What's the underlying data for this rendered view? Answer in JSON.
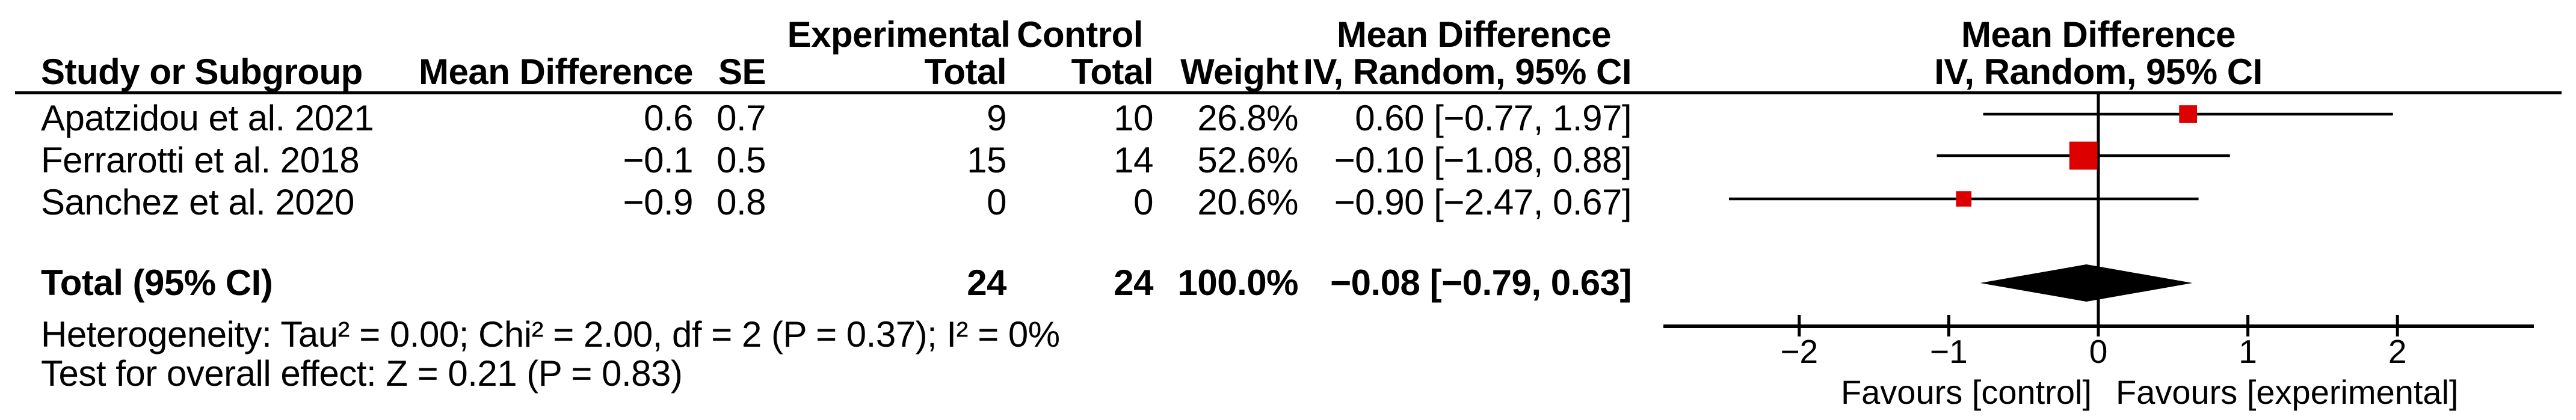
{
  "header": {
    "group_experimental": "Experimental",
    "group_control": "Control",
    "md_column_title": "Mean Difference",
    "plot_title": "Mean Difference",
    "study": "Study or Subgroup",
    "mean_difference": "Mean Difference",
    "se": "SE",
    "total_experimental": "Total",
    "total_control": "Total",
    "weight": "Weight",
    "iv_column": "IV, Random, 95% CI",
    "iv_plot": "IV, Random, 95% CI"
  },
  "rows": [
    {
      "name": "Apatzidou et al. 2021",
      "mean_difference": "0.6",
      "se": "0.7",
      "experimental_total": "9",
      "control_total": "10",
      "weight": "26.8%",
      "ci_text": "0.60 [−0.77, 1.97]"
    },
    {
      "name": "Ferrarotti et al. 2018",
      "mean_difference": "−0.1",
      "se": "0.5",
      "experimental_total": "15",
      "control_total": "14",
      "weight": "52.6%",
      "ci_text": "−0.10 [−1.08, 0.88]"
    },
    {
      "name": "Sanchez et al. 2020",
      "mean_difference": "−0.9",
      "se": "0.8",
      "experimental_total": "0",
      "control_total": "0",
      "weight": "20.6%",
      "ci_text": "−0.90 [−2.47, 0.67]"
    }
  ],
  "total": {
    "label": "Total (95% CI)",
    "experimental_total": "24",
    "control_total": "24",
    "weight": "100.0%",
    "ci_text": "−0.08 [−0.79, 0.63]"
  },
  "footnotes": {
    "heterogeneity": "Heterogeneity: Tau² = 0.00; Chi² = 2.00, df = 2 (P = 0.37); I² = 0%",
    "overall_effect": "Test for overall effect: Z = 0.21 (P = 0.83)"
  },
  "chart_data": {
    "type": "forest",
    "effect_measure": "Mean Difference",
    "model": "IV, Random, 95% CI",
    "studies": [
      {
        "name": "Apatzidou et al. 2021",
        "effect": 0.6,
        "ci_low": -0.77,
        "ci_high": 1.97,
        "weight_pct": 26.8
      },
      {
        "name": "Ferrarotti et al. 2018",
        "effect": -0.1,
        "ci_low": -1.08,
        "ci_high": 0.88,
        "weight_pct": 52.6
      },
      {
        "name": "Sanchez et al. 2020",
        "effect": -0.9,
        "ci_low": -2.47,
        "ci_high": 0.67,
        "weight_pct": 20.6
      }
    ],
    "total": {
      "effect": -0.08,
      "ci_low": -0.79,
      "ci_high": 0.63
    },
    "axis": {
      "ticks": [
        -2,
        -1,
        0,
        1,
        2
      ],
      "tick_labels": [
        "−2",
        "−1",
        "0",
        "1",
        "2"
      ],
      "xlim": [
        -2.9,
        2.9
      ]
    },
    "favours_left": "Favours [control]",
    "favours_right": "Favours [experimental]",
    "marker_color": "#dd0000",
    "summary_color": "#000000",
    "axis_color": "#000000",
    "grid": false,
    "legend": false
  }
}
